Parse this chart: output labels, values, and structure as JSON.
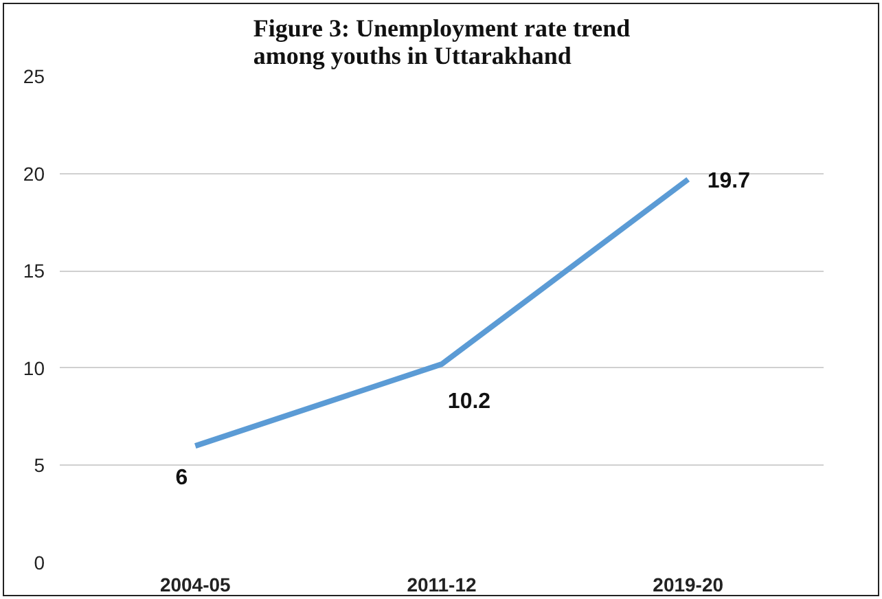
{
  "chart_data": {
    "type": "line",
    "title": "Figure 3: Unemployment rate trend\namong youths in Uttarakhand",
    "categories": [
      "2004-05",
      "2011-12",
      "2019-20"
    ],
    "series": [
      {
        "color": "#5b9bd5",
        "values": [
          6,
          10.2,
          19.7
        ]
      }
    ],
    "ylim": [
      0,
      25
    ],
    "yticks": [
      0,
      5,
      10,
      15,
      20,
      25
    ],
    "grid": "y",
    "data_labels": true,
    "marker": "none",
    "line_style": "solid"
  }
}
